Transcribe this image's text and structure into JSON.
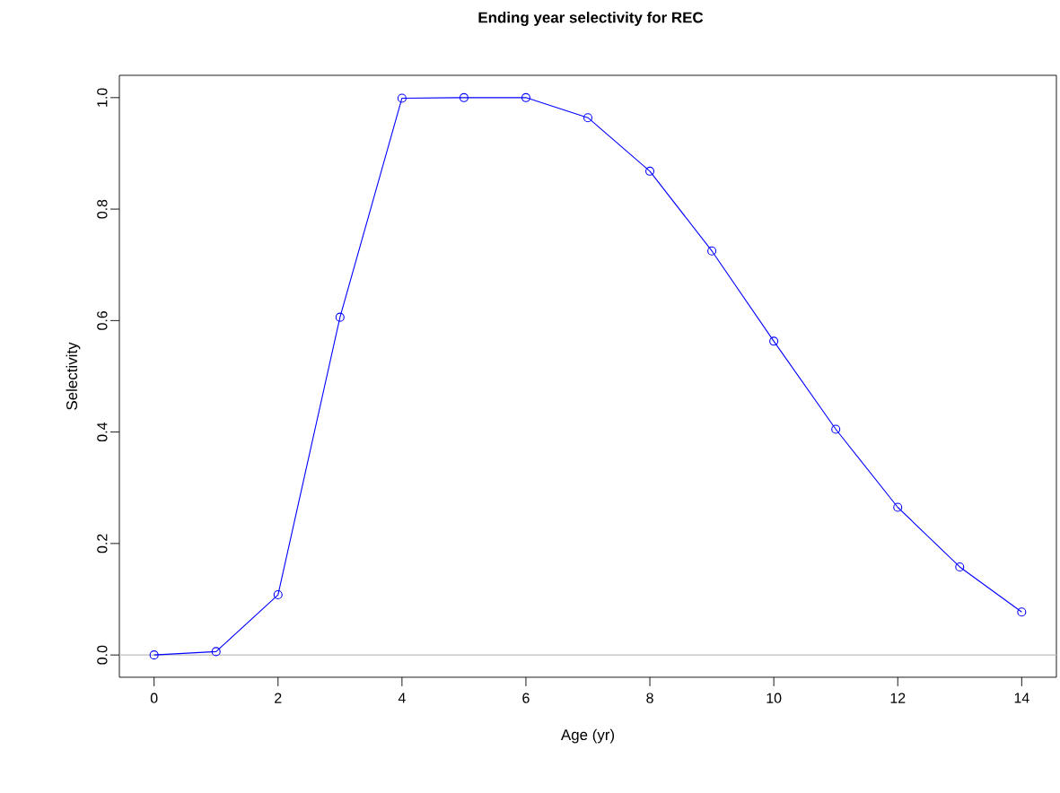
{
  "chart_data": {
    "type": "line",
    "title": "Ending year selectivity for REC",
    "xlabel": "Age (yr)",
    "ylabel": "Selectivity",
    "x": [
      0,
      1,
      2,
      3,
      4,
      5,
      6,
      7,
      8,
      9,
      10,
      11,
      12,
      13,
      14
    ],
    "series": [
      {
        "color": "#0000ff",
        "values": [
          0,
          0.006,
          0.108,
          0.606,
          0.999,
          1.0,
          1.0,
          0.964,
          0.868,
          0.725,
          0.563,
          0.405,
          0.265,
          0.158,
          0.077
        ]
      }
    ],
    "marker": "circle",
    "line_style": "solid",
    "grid": false,
    "xlim": [
      -0.56,
      14.56
    ],
    "ylim": [
      -0.04,
      1.04
    ],
    "xticks": [
      0,
      2,
      4,
      6,
      8,
      10,
      12,
      14
    ],
    "yticks": [
      {
        "value": 0,
        "label": "0.0"
      },
      {
        "value": 0.2,
        "label": "0.2"
      },
      {
        "value": 0.4,
        "label": "0.4"
      },
      {
        "value": 0.6,
        "label": "0.6"
      },
      {
        "value": 0.8,
        "label": "0.8"
      },
      {
        "value": 1.0,
        "label": "1.0"
      }
    ],
    "ref_lines": [
      {
        "axis": "y",
        "value": 0,
        "color": "#bebebe"
      }
    ]
  }
}
